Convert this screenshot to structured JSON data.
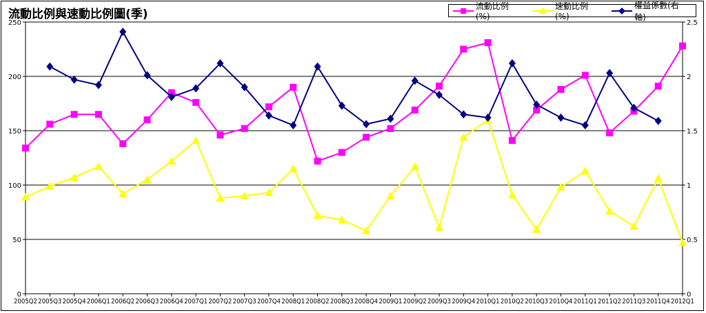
{
  "chart_data": {
    "type": "line",
    "title": "流動比例與速動比例圖(季)",
    "categories": [
      "2005Q2",
      "2005Q3",
      "2005Q4",
      "2006Q1",
      "2006Q2",
      "2006Q3",
      "2006Q4",
      "2007Q1",
      "2007Q2",
      "2007Q3",
      "2007Q4",
      "2008Q1",
      "2008Q2",
      "2008Q3",
      "2008Q4",
      "2009Q1",
      "2009Q2",
      "2009Q3",
      "2009Q4",
      "2010Q1",
      "2010Q2",
      "2010Q3",
      "2010Q4",
      "2011Q1",
      "2011Q2",
      "2011Q3",
      "2011Q4",
      "2012Q1"
    ],
    "y_left": {
      "ylim": [
        0,
        250
      ],
      "ticks": [
        "0",
        "50",
        "100",
        "150",
        "200",
        "250"
      ]
    },
    "y_right": {
      "ylim": [
        0,
        2.5
      ],
      "ticks": [
        "0",
        "0.5",
        "1",
        "1.5",
        "2",
        "2.5"
      ]
    },
    "grid": true,
    "legend_position": "top-right",
    "series": [
      {
        "name": "流動比例(%)",
        "axis": "left",
        "color": "#ff00ff",
        "marker": "square",
        "values": [
          134,
          156,
          165,
          165,
          138,
          160,
          185,
          176,
          146,
          152,
          172,
          190,
          122,
          130,
          144,
          152,
          169,
          191,
          225,
          231,
          141,
          169,
          188,
          201,
          148,
          168,
          191,
          228
        ]
      },
      {
        "name": "速動比例(%)",
        "axis": "left",
        "color": "#ffff00",
        "marker": "triangle",
        "values": [
          89,
          99,
          107,
          117,
          92,
          105,
          122,
          141,
          88,
          90,
          93,
          115,
          72,
          68,
          58,
          90,
          117,
          61,
          144,
          160,
          91,
          59,
          98,
          113,
          76,
          62,
          106,
          47
        ]
      },
      {
        "name": "權益係數(右軸)",
        "axis": "right",
        "color": "#000080",
        "marker": "diamond",
        "values": [
          null,
          2.09,
          1.97,
          1.92,
          2.41,
          2.01,
          1.81,
          1.89,
          2.12,
          1.9,
          1.64,
          1.55,
          2.09,
          1.73,
          1.56,
          1.61,
          1.96,
          1.83,
          1.65,
          1.62,
          2.12,
          1.74,
          1.62,
          1.55,
          2.03,
          1.71,
          1.59,
          null
        ]
      }
    ]
  }
}
